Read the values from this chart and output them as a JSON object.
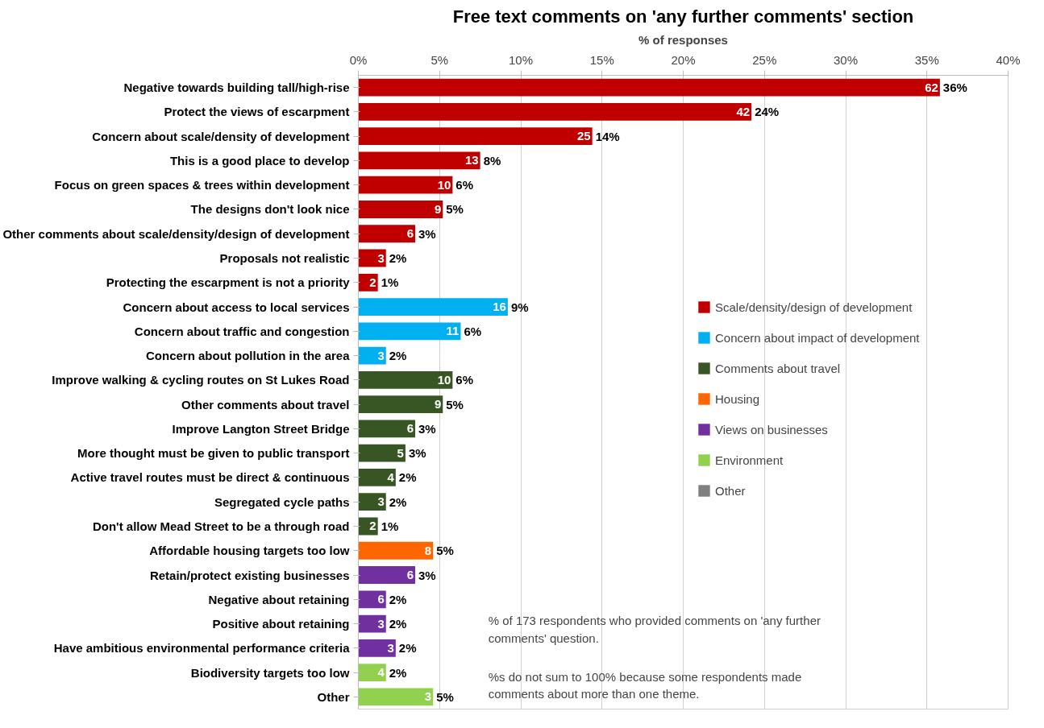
{
  "chart_data": {
    "type": "bar",
    "orientation": "horizontal",
    "title": "Free text comments on 'any further comments' section",
    "xlabel": "% of responses",
    "categories": [
      "Negative towards building tall/high-rise",
      "Protect the views of escarpment",
      "Concern about scale/density of development",
      "This is a good place to develop",
      "Focus on green spaces & trees within development",
      "The designs don't look nice",
      "Other comments about scale/density/design of development",
      "Proposals not realistic",
      "Protecting the escarpment is not a priority",
      "Concern about access to local services",
      "Concern about traffic and congestion",
      "Concern about pollution in the area",
      "Improve walking & cycling routes on St Lukes Road",
      "Other comments about travel",
      "Improve Langton Street Bridge",
      "More thought must be given to public transport",
      "Active travel routes must be direct & continuous",
      "Segregated cycle paths",
      "Don't allow Mead Street to be a through road",
      "Affordable housing targets too low",
      "Retain/protect existing businesses",
      "Negative about retaining",
      "Positive about retaining",
      "Have ambitious environmental performance criteria",
      "Biodiversity targets too low",
      "Other"
    ],
    "series": [
      {
        "name": "Scale/density/design of development",
        "color": "#c00000",
        "values": [
          35.8,
          24.2,
          14.4,
          7.5,
          5.8,
          5.2,
          3.5,
          1.7,
          1.2,
          null,
          null,
          null,
          null,
          null,
          null,
          null,
          null,
          null,
          null,
          null,
          null,
          null,
          null,
          null,
          null,
          null
        ]
      },
      {
        "name": "Concern about impact of development",
        "color": "#00b0f0",
        "values": [
          null,
          null,
          null,
          null,
          null,
          null,
          null,
          null,
          null,
          9.2,
          6.3,
          1.7,
          null,
          null,
          null,
          null,
          null,
          null,
          null,
          null,
          null,
          null,
          null,
          null,
          null,
          null
        ]
      },
      {
        "name": "Comments about travel",
        "color": "#375623",
        "values": [
          null,
          null,
          null,
          null,
          null,
          null,
          null,
          null,
          null,
          null,
          null,
          null,
          5.8,
          5.2,
          3.5,
          2.9,
          2.3,
          1.7,
          1.2,
          null,
          null,
          null,
          null,
          null,
          null,
          null
        ]
      },
      {
        "name": "Housing",
        "color": "#ff6600",
        "values": [
          null,
          null,
          null,
          null,
          null,
          null,
          null,
          null,
          null,
          null,
          null,
          null,
          null,
          null,
          null,
          null,
          null,
          null,
          null,
          4.6,
          null,
          null,
          null,
          null,
          null,
          null
        ]
      },
      {
        "name": "Views on businesses",
        "color": "#7030a0",
        "values": [
          null,
          null,
          null,
          null,
          null,
          null,
          null,
          null,
          null,
          null,
          null,
          null,
          null,
          null,
          null,
          null,
          null,
          null,
          null,
          null,
          3.5,
          1.7,
          1.7,
          2.3,
          null,
          null
        ]
      },
      {
        "name": "Environment",
        "color": "#92d050",
        "values": [
          null,
          null,
          null,
          null,
          null,
          null,
          null,
          null,
          null,
          null,
          null,
          null,
          null,
          null,
          null,
          null,
          null,
          null,
          null,
          null,
          null,
          null,
          null,
          null,
          1.7,
          4.6
        ]
      },
      {
        "name": "Other",
        "color": "#808080",
        "values": [
          null,
          null,
          null,
          null,
          null,
          null,
          null,
          null,
          null,
          null,
          null,
          null,
          null,
          null,
          null,
          null,
          null,
          null,
          null,
          null,
          null,
          null,
          null,
          null,
          null,
          null
        ]
      }
    ],
    "value_labels": [
      "36%",
      "24%",
      "14%",
      "8%",
      "6%",
      "5%",
      "3%",
      "2%",
      "1%",
      "9%",
      "6%",
      "2%",
      "6%",
      "5%",
      "3%",
      "3%",
      "2%",
      "2%",
      "1%",
      "5%",
      "3%",
      "2%",
      "2%",
      "2%",
      "2%",
      "5%"
    ],
    "xlim": [
      0,
      40
    ],
    "xticks": [
      {
        "value": 0,
        "label": "0%"
      },
      {
        "value": 5,
        "label": "5%"
      },
      {
        "value": 10,
        "label": "10%"
      },
      {
        "value": 15,
        "label": "15%"
      },
      {
        "value": 20,
        "label": "20%"
      },
      {
        "value": 25,
        "label": "25%"
      },
      {
        "value": 30,
        "label": "30%"
      },
      {
        "value": 35,
        "label": "35%"
      },
      {
        "value": 40,
        "label": "40%"
      }
    ],
    "grid": "x",
    "legend": "right",
    "annotations": [
      "% of 173 respondents who provided comments on 'any further comments' question.",
      "%s do not sum to 100% because some respondents made comments about more than one theme.",
      {
        "text": "62",
        "x": 35.8,
        "y": "Negative towards building tall/high-rise"
      },
      {
        "text": "42",
        "x": 24.2,
        "y": "Protect the views of escarpment"
      },
      {
        "text": "25",
        "x": 14.4,
        "y": "Concern about scale/density of development"
      },
      {
        "text": "13",
        "x": 7.5,
        "y": "This is a good place to develop"
      },
      {
        "text": "10",
        "x": 5.8,
        "y": "Focus on green spaces & trees within development"
      },
      {
        "text": "9",
        "x": 5.2,
        "y": "The designs don't look nice"
      },
      {
        "text": "6",
        "x": 3.5,
        "y": "Other comments about scale/density/design of development"
      },
      {
        "text": "3",
        "x": 1.7,
        "y": "Proposals not realistic"
      },
      {
        "text": "2",
        "x": 1.2,
        "y": "Protecting the escarpment is not a priority"
      },
      {
        "text": "16",
        "x": 9.2,
        "y": "Concern about access to local services"
      },
      {
        "text": "11",
        "x": 6.3,
        "y": "Concern about traffic and congestion"
      },
      {
        "text": "3",
        "x": 1.7,
        "y": "Concern about pollution in the area"
      },
      {
        "text": "10",
        "x": 5.8,
        "y": "Improve walking & cycling routes on St Lukes Road"
      },
      {
        "text": "9",
        "x": 5.2,
        "y": "Other comments about travel"
      },
      {
        "text": "6",
        "x": 3.5,
        "y": "Improve Langton Street Bridge"
      },
      {
        "text": "5",
        "x": 2.9,
        "y": "More thought must be given to public transport"
      },
      {
        "text": "4",
        "x": 2.3,
        "y": "Active travel routes must be direct & continuous"
      },
      {
        "text": "3",
        "x": 1.7,
        "y": "Segregated cycle paths"
      },
      {
        "text": "2",
        "x": 1.2,
        "y": "Don't allow Mead Street to be a through road"
      },
      {
        "text": "8",
        "x": 4.6,
        "y": "Affordable housing targets too low"
      },
      {
        "text": "6",
        "x": 3.5,
        "y": "Retain/protect existing businesses"
      },
      {
        "text": "6",
        "x": 1.7,
        "y": "Negative about retaining"
      },
      {
        "text": "3",
        "x": 1.7,
        "y": "Positive about retaining"
      },
      {
        "text": "3",
        "x": 2.3,
        "y": "Have ambitious environmental performance criteria"
      },
      {
        "text": "4",
        "x": 1.7,
        "y": "Biodiversity targets too low"
      },
      {
        "text": "3",
        "x": 4.6,
        "y": "Other"
      }
    ]
  }
}
